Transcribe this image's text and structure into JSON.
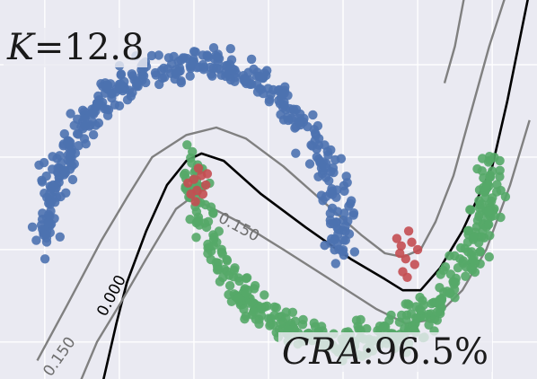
{
  "chart_data": {
    "type": "scatter",
    "title": "",
    "xlabel": "",
    "ylabel": "",
    "xlim": [
      -1.3,
      2.3
    ],
    "ylim": [
      -0.7,
      1.35
    ],
    "grid": true,
    "background_color": "#eaeaf2",
    "annotations": {
      "k_symbol": "K",
      "k_equals": "=",
      "k_value": "12.8",
      "cra_symbol": "CRA",
      "cra_colon": ":",
      "cra_value": "96.5%"
    },
    "series": [
      {
        "name": "",
        "color": "#4c72b0",
        "arc": {
          "cx": 0.0,
          "cy": 0.0,
          "r": 1.0,
          "theta_deg": [
            0,
            180
          ]
        },
        "count": 420,
        "noise": 0.045
      },
      {
        "name": "",
        "color": "#55a868",
        "arc": {
          "cx": 1.0,
          "cy": 0.5,
          "r": 1.0,
          "theta_deg": [
            180,
            360
          ]
        },
        "count": 420,
        "noise": 0.045
      },
      {
        "name": "",
        "color": "#c44e52",
        "points": [
          [
            0.0,
            0.38
          ],
          [
            0.02,
            0.32
          ],
          [
            0.05,
            0.4
          ],
          [
            -0.02,
            0.3
          ],
          [
            0.06,
            0.3
          ],
          [
            0.03,
            0.44
          ],
          [
            -0.04,
            0.36
          ],
          [
            0.08,
            0.35
          ],
          [
            0.01,
            0.26
          ],
          [
            0.09,
            0.41
          ],
          [
            1.39,
            0.02
          ],
          [
            1.42,
            -0.05
          ],
          [
            1.46,
            0.04
          ],
          [
            1.4,
            -0.12
          ],
          [
            1.48,
            -0.08
          ],
          [
            1.38,
            -0.02
          ],
          [
            1.44,
            0.1
          ],
          [
            1.5,
            0.0
          ],
          [
            1.43,
            -0.15
          ],
          [
            1.36,
            0.06
          ]
        ]
      }
    ],
    "contours": [
      {
        "level_label": "0.000",
        "color": "#000000",
        "points": [
          [
            -0.62,
            -0.75
          ],
          [
            -0.52,
            -0.4
          ],
          [
            -0.45,
            -0.18
          ],
          [
            -0.32,
            0.1
          ],
          [
            -0.18,
            0.35
          ],
          [
            -0.05,
            0.48
          ],
          [
            0.05,
            0.52
          ],
          [
            0.2,
            0.48
          ],
          [
            0.45,
            0.3
          ],
          [
            0.75,
            0.12
          ],
          [
            1.05,
            -0.05
          ],
          [
            1.28,
            -0.16
          ],
          [
            1.4,
            -0.22
          ],
          [
            1.52,
            -0.22
          ],
          [
            1.65,
            -0.1
          ],
          [
            1.8,
            0.1
          ],
          [
            2.0,
            0.45
          ],
          [
            2.1,
            0.8
          ],
          [
            2.2,
            1.2
          ],
          [
            2.25,
            1.4
          ]
        ]
      },
      {
        "level_label": "",
        "color": "#808080",
        "points": [
          [
            -1.05,
            -0.6
          ],
          [
            -0.85,
            -0.3
          ],
          [
            -0.62,
            0.05
          ],
          [
            -0.45,
            0.28
          ],
          [
            -0.28,
            0.5
          ],
          [
            -0.05,
            0.62
          ],
          [
            0.15,
            0.66
          ],
          [
            0.35,
            0.6
          ],
          [
            0.6,
            0.45
          ],
          [
            0.88,
            0.25
          ],
          [
            1.12,
            0.08
          ],
          [
            1.28,
            -0.02
          ],
          [
            1.4,
            -0.04
          ],
          [
            1.52,
            0.0
          ],
          [
            1.62,
            0.15
          ],
          [
            1.74,
            0.4
          ],
          [
            1.86,
            0.75
          ],
          [
            1.98,
            1.1
          ],
          [
            2.1,
            1.4
          ]
        ]
      },
      {
        "level_label": "0.150",
        "color": "#808080",
        "points": [
          [
            -0.78,
            -0.75
          ],
          [
            -0.65,
            -0.5
          ],
          [
            -0.5,
            -0.3
          ],
          [
            -0.32,
            -0.05
          ],
          [
            -0.12,
            0.22
          ],
          [
            -0.02,
            0.28
          ],
          [
            0.06,
            0.25
          ],
          [
            0.3,
            0.15
          ],
          [
            0.6,
            0.0
          ],
          [
            0.95,
            -0.18
          ],
          [
            1.22,
            -0.32
          ],
          [
            1.42,
            -0.4
          ],
          [
            1.6,
            -0.38
          ],
          [
            1.8,
            -0.22
          ],
          [
            1.96,
            0.0
          ],
          [
            2.12,
            0.35
          ],
          [
            2.25,
            0.7
          ]
        ]
      },
      {
        "level_label": "",
        "color": "#808080",
        "points": [
          [
            1.82,
            1.4
          ],
          [
            1.75,
            1.1
          ],
          [
            1.68,
            0.9
          ]
        ]
      }
    ],
    "contour_label_positions": [
      {
        "text": "0.000",
        "x": -0.55,
        "y": -0.25,
        "angle": -62
      },
      {
        "text": "0.150",
        "x": 0.3,
        "y": 0.12,
        "angle": 28
      },
      {
        "text": "0.150",
        "x": -0.9,
        "y": -0.58,
        "angle": -55
      }
    ]
  }
}
